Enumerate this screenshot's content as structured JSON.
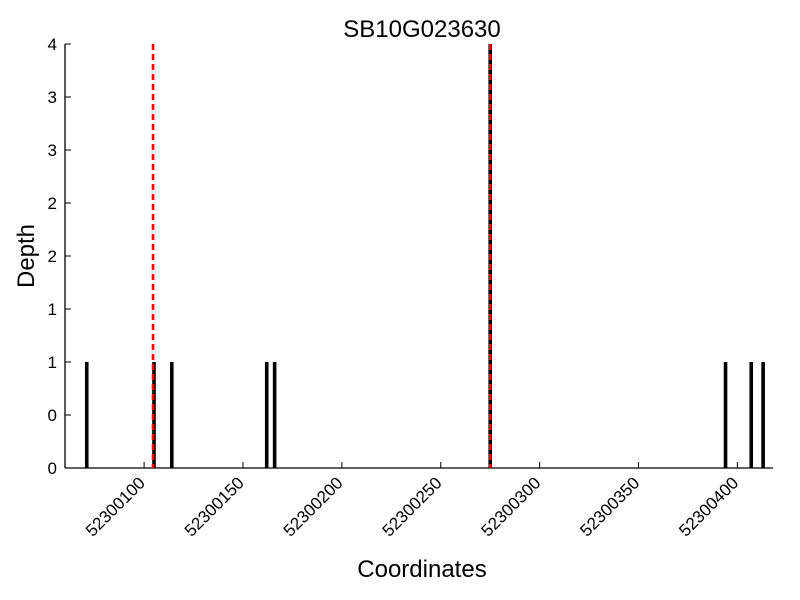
{
  "chart_data": {
    "type": "bar",
    "title": "SB10G023630",
    "xlabel": "Coordinates",
    "ylabel": "Depth",
    "xlim": [
      52300060,
      52300418
    ],
    "ylim": [
      0,
      4
    ],
    "x_ticks": [
      52300100,
      52300150,
      52300200,
      52300250,
      52300300,
      52300350,
      52300400
    ],
    "x_tick_labels": [
      "52300100",
      "52300150",
      "52300200",
      "52300250",
      "52300300",
      "52300350",
      "52300400"
    ],
    "y_ticks": [
      0,
      0.5,
      1,
      1.5,
      2,
      2.5,
      3,
      3.5,
      4
    ],
    "y_tick_labels": [
      "0",
      "0",
      "1",
      "1",
      "2",
      "2",
      "3",
      "3",
      "4"
    ],
    "grid": false,
    "series": [
      {
        "color": "#000000",
        "bars": [
          {
            "x": 52300071,
            "value": 1
          },
          {
            "x": 52300105,
            "value": 1
          },
          {
            "x": 52300114,
            "value": 1
          },
          {
            "x": 52300162,
            "value": 1
          },
          {
            "x": 52300166,
            "value": 1
          },
          {
            "x": 52300275,
            "value": 4
          },
          {
            "x": 52300394,
            "value": 1
          },
          {
            "x": 52300407,
            "value": 1
          },
          {
            "x": 52300413,
            "value": 1
          }
        ]
      }
    ],
    "reference_lines": [
      {
        "x": 52300104.5,
        "color": "#ff0000",
        "style": "dashed"
      },
      {
        "x": 52300275,
        "color": "#ff0000",
        "style": "dashed"
      }
    ]
  }
}
